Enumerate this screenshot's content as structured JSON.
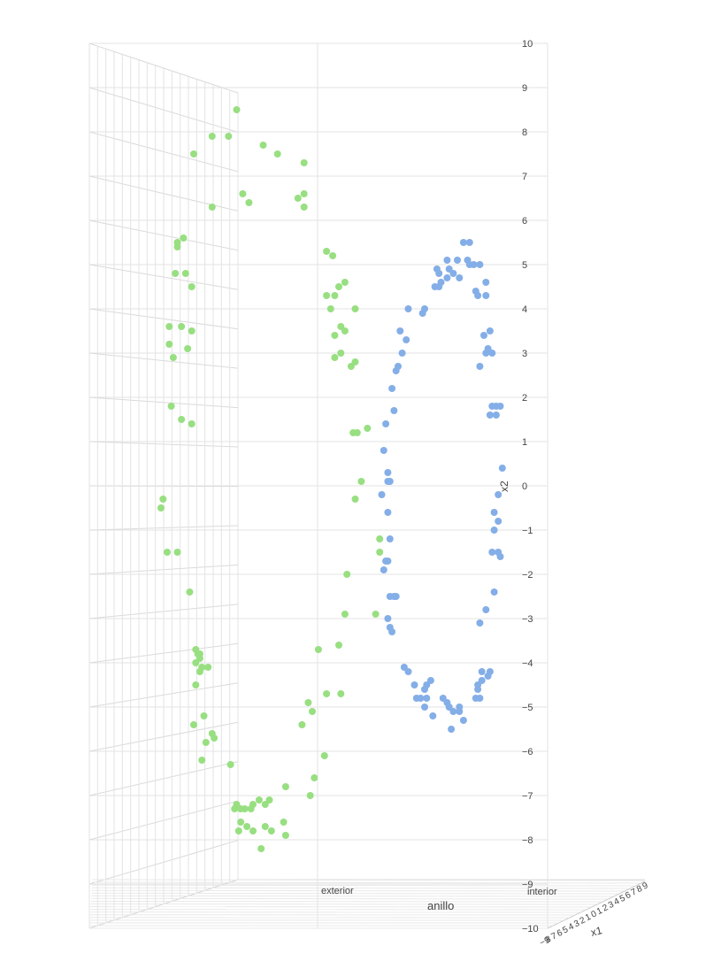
{
  "chart_data": {
    "type": "scatter",
    "title": "",
    "xlabel": "x1",
    "ylabel": "x2",
    "zlabel": "anillo",
    "z_categories": [
      "exterior",
      "interior"
    ],
    "x_tick_labels": [
      "−9",
      "8",
      "7",
      "6",
      "5",
      "4",
      "3",
      "2",
      "1",
      "0",
      "1",
      "2",
      "3",
      "4",
      "5",
      "6",
      "7",
      "8",
      "9"
    ],
    "y_ticks": [
      10,
      9,
      8,
      7,
      6,
      5,
      4,
      3,
      2,
      1,
      0,
      -1,
      -2,
      -3,
      -4,
      -5,
      -6,
      -7,
      -8,
      -9,
      -10
    ],
    "y_tick_labels": [
      "10",
      "9",
      "8",
      "7",
      "6",
      "5",
      "4",
      "3",
      "2",
      "1",
      "0",
      "−1",
      "−2",
      "−3",
      "−4",
      "−5",
      "−6",
      "−7",
      "−8",
      "−9",
      "−10"
    ],
    "ylim": [
      -10,
      10
    ],
    "grid": true,
    "series": [
      {
        "color": "#98df81",
        "points": [
          [
            -6.0,
            8.5
          ],
          [
            -7.2,
            7.9
          ],
          [
            -6.4,
            7.9
          ],
          [
            -4.7,
            7.7
          ],
          [
            -8.1,
            7.5
          ],
          [
            -4.0,
            7.5
          ],
          [
            -2.7,
            7.3
          ],
          [
            -5.7,
            6.6
          ],
          [
            -5.4,
            6.4
          ],
          [
            -2.7,
            6.6
          ],
          [
            -3.0,
            6.5
          ],
          [
            -2.7,
            6.3
          ],
          [
            -7.2,
            6.3
          ],
          [
            -8.6,
            5.6
          ],
          [
            -8.9,
            5.5
          ],
          [
            -8.9,
            5.4
          ],
          [
            -1.6,
            5.3
          ],
          [
            -1.3,
            5.2
          ],
          [
            -9.0,
            4.8
          ],
          [
            -8.5,
            4.8
          ],
          [
            -8.2,
            4.5
          ],
          [
            -0.7,
            4.6
          ],
          [
            -1.0,
            4.5
          ],
          [
            -1.2,
            4.3
          ],
          [
            -1.6,
            4.3
          ],
          [
            -1.4,
            4.0
          ],
          [
            -0.2,
            4.0
          ],
          [
            -9.3,
            3.6
          ],
          [
            -8.7,
            3.6
          ],
          [
            -8.2,
            3.5
          ],
          [
            -0.9,
            3.6
          ],
          [
            -0.7,
            3.5
          ],
          [
            -1.2,
            3.4
          ],
          [
            -9.3,
            3.2
          ],
          [
            -8.4,
            3.1
          ],
          [
            -9.1,
            2.9
          ],
          [
            -0.9,
            3.0
          ],
          [
            -1.2,
            2.9
          ],
          [
            -0.2,
            2.8
          ],
          [
            -0.4,
            2.7
          ],
          [
            -9.2,
            1.8
          ],
          [
            -8.7,
            1.5
          ],
          [
            -8.2,
            1.4
          ],
          [
            -0.1,
            1.2
          ],
          [
            -0.3,
            1.2
          ],
          [
            0.4,
            1.3
          ],
          [
            -9.6,
            -0.3
          ],
          [
            -9.7,
            -0.5
          ],
          [
            0.1,
            0.1
          ],
          [
            -0.2,
            -0.3
          ],
          [
            -9.4,
            -1.5
          ],
          [
            -8.9,
            -1.5
          ],
          [
            1.0,
            -1.2
          ],
          [
            1.0,
            -1.5
          ],
          [
            -8.3,
            -2.4
          ],
          [
            -0.6,
            -2.0
          ],
          [
            -0.7,
            -2.9
          ],
          [
            0.8,
            -2.9
          ],
          [
            -8.0,
            -3.7
          ],
          [
            -7.8,
            -3.8
          ],
          [
            -7.9,
            -3.8
          ],
          [
            -7.8,
            -3.9
          ],
          [
            -8.0,
            -4.0
          ],
          [
            -7.4,
            -4.1
          ],
          [
            -7.7,
            -4.1
          ],
          [
            -7.8,
            -4.2
          ],
          [
            -1.0,
            -3.6
          ],
          [
            -2.0,
            -3.7
          ],
          [
            -8.0,
            -4.5
          ],
          [
            -1.6,
            -4.7
          ],
          [
            -0.9,
            -4.7
          ],
          [
            -2.5,
            -4.9
          ],
          [
            -2.3,
            -5.1
          ],
          [
            -2.8,
            -5.4
          ],
          [
            -7.6,
            -5.2
          ],
          [
            -8.1,
            -5.4
          ],
          [
            -7.2,
            -5.6
          ],
          [
            -7.5,
            -5.8
          ],
          [
            -7.1,
            -5.7
          ],
          [
            -7.7,
            -6.2
          ],
          [
            -1.7,
            -6.1
          ],
          [
            -6.3,
            -6.3
          ],
          [
            -2.2,
            -6.6
          ],
          [
            -3.6,
            -6.8
          ],
          [
            -2.4,
            -7.0
          ],
          [
            -4.4,
            -7.1
          ],
          [
            -6.0,
            -7.2
          ],
          [
            -5.2,
            -7.2
          ],
          [
            -4.9,
            -7.1
          ],
          [
            -4.6,
            -7.2
          ],
          [
            -5.3,
            -7.3
          ],
          [
            -6.1,
            -7.3
          ],
          [
            -5.8,
            -7.3
          ],
          [
            -5.6,
            -7.3
          ],
          [
            -5.8,
            -7.6
          ],
          [
            -5.5,
            -7.7
          ],
          [
            -4.6,
            -7.7
          ],
          [
            -3.7,
            -7.6
          ],
          [
            -5.9,
            -7.8
          ],
          [
            -5.2,
            -7.8
          ],
          [
            -4.3,
            -7.8
          ],
          [
            -3.6,
            -7.9
          ],
          [
            -4.8,
            -8.2
          ]
        ]
      },
      {
        "color": "#84aee7",
        "points": [
          [
            5.1,
            5.5
          ],
          [
            5.4,
            5.5
          ],
          [
            4.3,
            5.1
          ],
          [
            4.8,
            5.1
          ],
          [
            5.3,
            5.1
          ],
          [
            5.9,
            5.0
          ],
          [
            5.6,
            5.0
          ],
          [
            5.4,
            5.0
          ],
          [
            3.8,
            4.9
          ],
          [
            3.9,
            4.8
          ],
          [
            4.4,
            4.9
          ],
          [
            4.6,
            4.8
          ],
          [
            4.9,
            4.7
          ],
          [
            4.3,
            4.7
          ],
          [
            4.0,
            4.6
          ],
          [
            6.2,
            4.6
          ],
          [
            3.7,
            4.5
          ],
          [
            3.9,
            4.5
          ],
          [
            5.7,
            4.4
          ],
          [
            5.8,
            4.3
          ],
          [
            6.2,
            4.3
          ],
          [
            2.4,
            4.0
          ],
          [
            3.1,
            3.9
          ],
          [
            3.2,
            4.0
          ],
          [
            6.1,
            3.4
          ],
          [
            6.4,
            3.5
          ],
          [
            2.0,
            3.5
          ],
          [
            2.3,
            3.3
          ],
          [
            2.1,
            3.0
          ],
          [
            6.2,
            3.0
          ],
          [
            6.5,
            3.0
          ],
          [
            6.3,
            3.1
          ],
          [
            1.9,
            2.7
          ],
          [
            5.9,
            2.7
          ],
          [
            1.8,
            2.6
          ],
          [
            1.6,
            2.2
          ],
          [
            6.5,
            1.8
          ],
          [
            6.7,
            1.8
          ],
          [
            6.9,
            1.8
          ],
          [
            6.4,
            1.6
          ],
          [
            6.7,
            1.6
          ],
          [
            1.7,
            1.7
          ],
          [
            1.3,
            1.4
          ],
          [
            1.2,
            0.8
          ],
          [
            7.0,
            0.4
          ],
          [
            1.4,
            0.3
          ],
          [
            1.5,
            0.1
          ],
          [
            1.4,
            0.1
          ],
          [
            1.1,
            -0.2
          ],
          [
            6.8,
            -0.2
          ],
          [
            1.4,
            -0.6
          ],
          [
            6.6,
            -0.6
          ],
          [
            6.8,
            -0.8
          ],
          [
            6.6,
            -1.0
          ],
          [
            1.5,
            -1.2
          ],
          [
            6.5,
            -1.5
          ],
          [
            6.8,
            -1.5
          ],
          [
            6.9,
            -1.6
          ],
          [
            1.3,
            -1.7
          ],
          [
            1.4,
            -1.7
          ],
          [
            1.2,
            -1.9
          ],
          [
            6.6,
            -2.4
          ],
          [
            1.5,
            -2.5
          ],
          [
            1.7,
            -2.5
          ],
          [
            1.8,
            -2.5
          ],
          [
            6.2,
            -2.8
          ],
          [
            1.4,
            -3.0
          ],
          [
            5.9,
            -3.1
          ],
          [
            1.5,
            -3.2
          ],
          [
            1.6,
            -3.3
          ],
          [
            2.2,
            -4.1
          ],
          [
            2.4,
            -4.2
          ],
          [
            6.0,
            -4.2
          ],
          [
            6.4,
            -4.2
          ],
          [
            6.3,
            -4.3
          ],
          [
            6.0,
            -4.4
          ],
          [
            3.5,
            -4.4
          ],
          [
            2.7,
            -4.5
          ],
          [
            3.3,
            -4.5
          ],
          [
            3.2,
            -4.6
          ],
          [
            5.8,
            -4.5
          ],
          [
            5.8,
            -4.6
          ],
          [
            2.8,
            -4.8
          ],
          [
            3.0,
            -4.8
          ],
          [
            3.3,
            -4.8
          ],
          [
            5.7,
            -4.8
          ],
          [
            4.1,
            -4.8
          ],
          [
            5.9,
            -4.8
          ],
          [
            4.3,
            -4.9
          ],
          [
            4.4,
            -5.0
          ],
          [
            4.9,
            -5.0
          ],
          [
            3.2,
            -5.0
          ],
          [
            4.9,
            -5.1
          ],
          [
            4.6,
            -5.1
          ],
          [
            3.6,
            -5.2
          ],
          [
            5.1,
            -5.3
          ],
          [
            4.5,
            -5.5
          ]
        ]
      }
    ]
  }
}
